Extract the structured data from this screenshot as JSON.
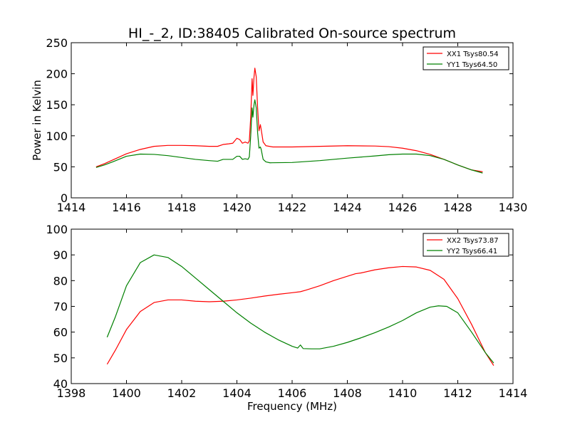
{
  "chart_data": [
    {
      "type": "line",
      "title": "HI_-_2, ID:38405 Calibrated On-source spectrum",
      "xlabel": "",
      "ylabel": "Power in Kelvin",
      "xlim": [
        1414,
        1430
      ],
      "ylim": [
        0,
        250
      ],
      "xticks": [
        1414,
        1416,
        1418,
        1420,
        1422,
        1424,
        1426,
        1428,
        1430
      ],
      "yticks": [
        0,
        50,
        100,
        150,
        200,
        250
      ],
      "grid": false,
      "legend_position": "top-right",
      "series": [
        {
          "name": "XX1 Tsys80.54",
          "color": "#ff0000",
          "points": [
            [
              1414.9,
              50
            ],
            [
              1415.2,
              55
            ],
            [
              1415.5,
              61
            ],
            [
              1416.0,
              71
            ],
            [
              1416.5,
              78
            ],
            [
              1417.0,
              83
            ],
            [
              1417.5,
              84.5
            ],
            [
              1418.0,
              84.5
            ],
            [
              1418.5,
              84
            ],
            [
              1419.0,
              83
            ],
            [
              1419.3,
              83
            ],
            [
              1419.5,
              86
            ],
            [
              1419.7,
              87
            ],
            [
              1419.85,
              88
            ],
            [
              1420.0,
              96
            ],
            [
              1420.1,
              94
            ],
            [
              1420.2,
              88
            ],
            [
              1420.3,
              90
            ],
            [
              1420.4,
              88
            ],
            [
              1420.45,
              92
            ],
            [
              1420.5,
              130
            ],
            [
              1420.55,
              192
            ],
            [
              1420.58,
              165
            ],
            [
              1420.62,
              195
            ],
            [
              1420.65,
              209
            ],
            [
              1420.7,
              195
            ],
            [
              1420.75,
              145
            ],
            [
              1420.8,
              108
            ],
            [
              1420.85,
              118
            ],
            [
              1420.88,
              110
            ],
            [
              1420.95,
              90
            ],
            [
              1421.05,
              84
            ],
            [
              1421.3,
              82
            ],
            [
              1422.0,
              82
            ],
            [
              1423.0,
              83
            ],
            [
              1424.0,
              84
            ],
            [
              1425.0,
              83.5
            ],
            [
              1425.5,
              82.5
            ],
            [
              1426.0,
              80
            ],
            [
              1426.5,
              76
            ],
            [
              1427.0,
              70
            ],
            [
              1427.5,
              62
            ],
            [
              1428.0,
              53
            ],
            [
              1428.5,
              45
            ],
            [
              1428.9,
              42
            ]
          ]
        },
        {
          "name": "YY1 Tsys64.50",
          "color": "#008000",
          "points": [
            [
              1414.9,
              49
            ],
            [
              1415.2,
              53
            ],
            [
              1415.5,
              58
            ],
            [
              1416.0,
              67
            ],
            [
              1416.5,
              70.5
            ],
            [
              1417.0,
              70
            ],
            [
              1417.5,
              68
            ],
            [
              1418.0,
              65
            ],
            [
              1418.5,
              62
            ],
            [
              1419.0,
              60
            ],
            [
              1419.3,
              59
            ],
            [
              1419.5,
              62
            ],
            [
              1419.85,
              62
            ],
            [
              1420.0,
              67
            ],
            [
              1420.1,
              67
            ],
            [
              1420.2,
              62
            ],
            [
              1420.3,
              63
            ],
            [
              1420.4,
              62
            ],
            [
              1420.45,
              66
            ],
            [
              1420.5,
              100
            ],
            [
              1420.55,
              145
            ],
            [
              1420.58,
              130
            ],
            [
              1420.62,
              150
            ],
            [
              1420.65,
              158
            ],
            [
              1420.7,
              145
            ],
            [
              1420.75,
              105
            ],
            [
              1420.8,
              80
            ],
            [
              1420.85,
              82
            ],
            [
              1420.88,
              78
            ],
            [
              1420.95,
              62
            ],
            [
              1421.05,
              58
            ],
            [
              1421.2,
              56.5
            ],
            [
              1422.0,
              57
            ],
            [
              1423.0,
              60
            ],
            [
              1424.0,
              64
            ],
            [
              1425.0,
              67.5
            ],
            [
              1425.5,
              69.5
            ],
            [
              1426.0,
              70.5
            ],
            [
              1426.5,
              70.5
            ],
            [
              1427.0,
              68
            ],
            [
              1427.5,
              62
            ],
            [
              1428.0,
              53
            ],
            [
              1428.5,
              45
            ],
            [
              1428.9,
              40
            ]
          ]
        }
      ]
    },
    {
      "type": "line",
      "title": "",
      "xlabel": "Frequency (MHz)",
      "ylabel": "",
      "xlim": [
        1398,
        1414
      ],
      "ylim": [
        40,
        100
      ],
      "xticks": [
        1398,
        1400,
        1402,
        1404,
        1406,
        1408,
        1410,
        1412,
        1414
      ],
      "yticks": [
        40,
        50,
        60,
        70,
        80,
        90,
        100
      ],
      "grid": false,
      "legend_position": "top-right",
      "series": [
        {
          "name": "XX2 Tsys73.87",
          "color": "#ff0000",
          "points": [
            [
              1399.3,
              47.5
            ],
            [
              1399.6,
              53
            ],
            [
              1400.0,
              61
            ],
            [
              1400.5,
              68
            ],
            [
              1401.0,
              71.5
            ],
            [
              1401.5,
              72.5
            ],
            [
              1402.0,
              72.5
            ],
            [
              1402.5,
              72
            ],
            [
              1403.0,
              71.8
            ],
            [
              1403.5,
              72
            ],
            [
              1404.0,
              72.5
            ],
            [
              1404.5,
              73.2
            ],
            [
              1405.0,
              74
            ],
            [
              1405.5,
              74.7
            ],
            [
              1406.0,
              75.3
            ],
            [
              1406.3,
              75.7
            ],
            [
              1406.5,
              76.3
            ],
            [
              1407.0,
              78
            ],
            [
              1407.5,
              80
            ],
            [
              1408.0,
              81.7
            ],
            [
              1408.3,
              82.7
            ],
            [
              1408.5,
              83
            ],
            [
              1409.0,
              84.2
            ],
            [
              1409.5,
              85
            ],
            [
              1410.0,
              85.5
            ],
            [
              1410.5,
              85.3
            ],
            [
              1411.0,
              84
            ],
            [
              1411.5,
              80.5
            ],
            [
              1412.0,
              73
            ],
            [
              1412.5,
              63
            ],
            [
              1413.0,
              52
            ],
            [
              1413.3,
              47
            ]
          ]
        },
        {
          "name": "YY2 Tsys66.41",
          "color": "#008000",
          "points": [
            [
              1399.3,
              58
            ],
            [
              1399.6,
              66
            ],
            [
              1400.0,
              78
            ],
            [
              1400.5,
              87
            ],
            [
              1401.0,
              90
            ],
            [
              1401.5,
              89
            ],
            [
              1402.0,
              85.5
            ],
            [
              1402.5,
              81
            ],
            [
              1403.0,
              76.5
            ],
            [
              1403.5,
              72
            ],
            [
              1404.0,
              67.5
            ],
            [
              1404.5,
              63.5
            ],
            [
              1405.0,
              60
            ],
            [
              1405.5,
              57
            ],
            [
              1406.0,
              54.5
            ],
            [
              1406.2,
              53.8
            ],
            [
              1406.3,
              55
            ],
            [
              1406.4,
              53.6
            ],
            [
              1406.7,
              53.5
            ],
            [
              1407.0,
              53.5
            ],
            [
              1407.5,
              54.5
            ],
            [
              1408.0,
              56
            ],
            [
              1408.5,
              57.8
            ],
            [
              1409.0,
              59.8
            ],
            [
              1409.5,
              62
            ],
            [
              1410.0,
              64.5
            ],
            [
              1410.5,
              67.5
            ],
            [
              1411.0,
              69.7
            ],
            [
              1411.3,
              70.2
            ],
            [
              1411.6,
              70
            ],
            [
              1412.0,
              67.5
            ],
            [
              1412.5,
              60
            ],
            [
              1413.0,
              52
            ],
            [
              1413.3,
              48
            ]
          ]
        }
      ]
    }
  ]
}
